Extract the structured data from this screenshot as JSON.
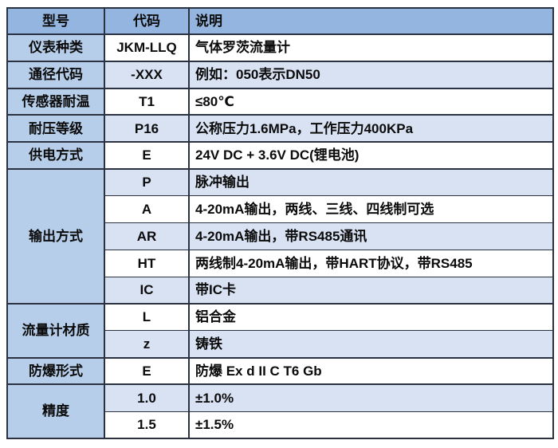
{
  "colors": {
    "header_bg": "#93b5e0",
    "label_col_bg": "#b6ceea",
    "row_alt_bg": "#d9e2f3",
    "row_bg": "#ffffff",
    "border": "#2a3140",
    "text": "#0b0b0b"
  },
  "table": {
    "headers": [
      "型号",
      "代码",
      "说明"
    ],
    "sections": [
      {
        "label": "仪表种类",
        "rows": [
          {
            "code": "JKM-LLQ",
            "desc": "气体罗茨流量计"
          }
        ]
      },
      {
        "label": "通径代码",
        "rows": [
          {
            "code": "-XXX",
            "desc": "例如：050表示DN50"
          }
        ]
      },
      {
        "label": "传感器耐温",
        "rows": [
          {
            "code": "T1",
            "desc": "≤80℃"
          }
        ]
      },
      {
        "label": "耐压等级",
        "rows": [
          {
            "code": "P16",
            "desc": "公称压力1.6MPa，工作压力400KPa"
          }
        ]
      },
      {
        "label": "供电方式",
        "rows": [
          {
            "code": "E",
            "desc": "24V DC + 3.6V DC(锂电池)"
          }
        ]
      },
      {
        "label": "输出方式",
        "rows": [
          {
            "code": "P",
            "desc": "脉冲输出"
          },
          {
            "code": "A",
            "desc": "4-20mA输出，两线、三线、四线制可选"
          },
          {
            "code": "AR",
            "desc": "4-20mA输出，带RS485通讯"
          },
          {
            "code": "HT",
            "desc": "两线制4-20mA输出，带HART协议，带RS485"
          },
          {
            "code": "IC",
            "desc": "带IC卡"
          }
        ]
      },
      {
        "label": "流量计材质",
        "rows": [
          {
            "code": "L",
            "desc": "铝合金"
          },
          {
            "code": "z",
            "desc": "铸铁"
          }
        ]
      },
      {
        "label": "防爆形式",
        "rows": [
          {
            "code": "E",
            "desc": "防爆 Ex d II C T6 Gb"
          }
        ]
      },
      {
        "label": "精度",
        "rows": [
          {
            "code": "1.0",
            "desc": "±1.0%"
          },
          {
            "code": "1.5",
            "desc": "±1.5%"
          }
        ]
      }
    ]
  }
}
